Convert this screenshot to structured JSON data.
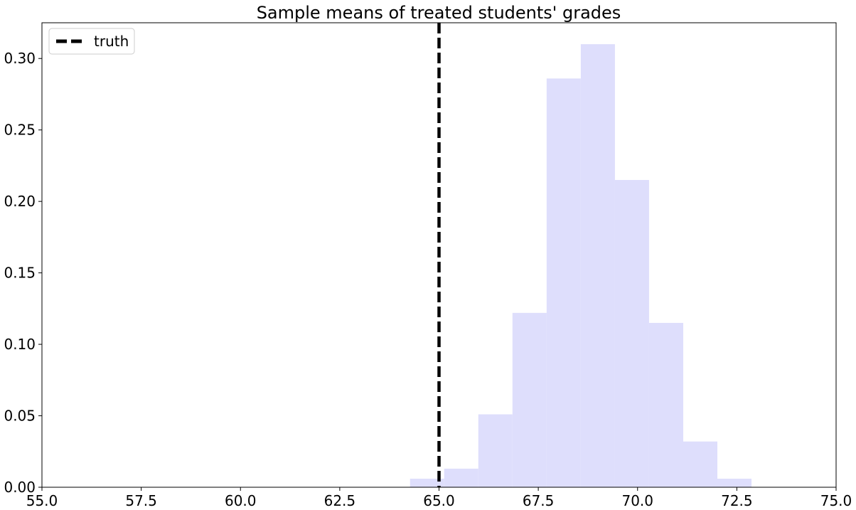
{
  "chart_data": {
    "type": "bar",
    "title": "Sample means of treated students' grades",
    "xlabel": "",
    "ylabel": "",
    "xlim": [
      55.0,
      75.0
    ],
    "ylim": [
      0.0,
      0.325
    ],
    "grid": false,
    "legend_position": "top-left",
    "x_ticks": [
      "55.0",
      "57.5",
      "60.0",
      "62.5",
      "65.0",
      "67.5",
      "70.0",
      "72.5",
      "75.0"
    ],
    "y_ticks": [
      "0.00",
      "0.05",
      "0.10",
      "0.15",
      "0.20",
      "0.25",
      "0.30"
    ],
    "histogram": {
      "name": "",
      "color": "#dedefc",
      "bins": [
        {
          "x0": 64.27,
          "x1": 65.13,
          "value": 0.006
        },
        {
          "x0": 65.13,
          "x1": 65.99,
          "value": 0.013
        },
        {
          "x0": 65.99,
          "x1": 66.85,
          "value": 0.051
        },
        {
          "x0": 66.85,
          "x1": 67.71,
          "value": 0.122
        },
        {
          "x0": 67.71,
          "x1": 68.57,
          "value": 0.286
        },
        {
          "x0": 68.57,
          "x1": 69.43,
          "value": 0.31
        },
        {
          "x0": 69.43,
          "x1": 70.29,
          "value": 0.215
        },
        {
          "x0": 70.29,
          "x1": 71.15,
          "value": 0.115
        },
        {
          "x0": 71.15,
          "x1": 72.01,
          "value": 0.032
        },
        {
          "x0": 72.01,
          "x1": 72.87,
          "value": 0.006
        }
      ]
    },
    "reference_line": {
      "name": "truth",
      "x": 65.0,
      "color": "#000000",
      "style": "dashed"
    }
  }
}
